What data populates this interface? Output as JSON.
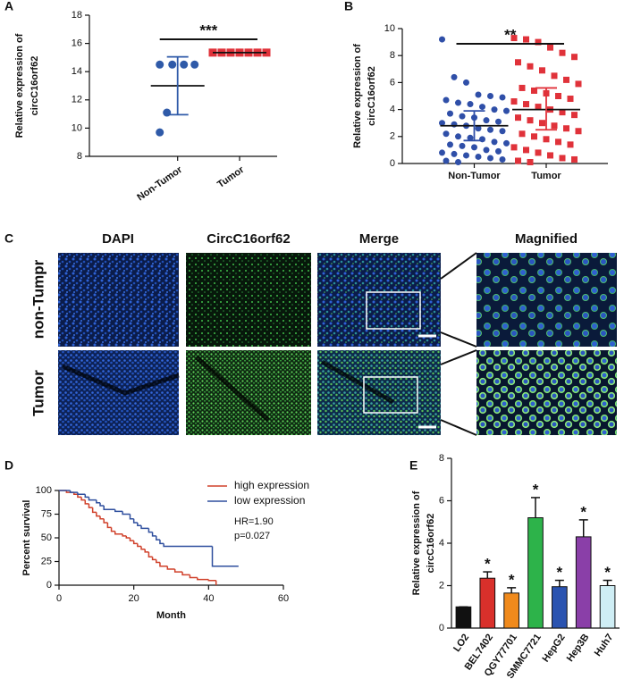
{
  "chart_data": [
    {
      "label": "A",
      "type": "dotplot",
      "ylabel": [
        "Relative expression of",
        "circC16orf62"
      ],
      "categories": [
        "Non-Tumor",
        "Tumor"
      ],
      "colors": [
        "#2f5aa8",
        "#e0323a"
      ],
      "markers": [
        "circle",
        "square"
      ],
      "values": [
        [
          14.5,
          14.5,
          14.5,
          14.5,
          11.1,
          9.7
        ],
        [
          15.35,
          15.35,
          15.35,
          15.35,
          15.35,
          15.35,
          15.35
        ]
      ],
      "means": [
        13.0,
        15.35
      ],
      "error_bars": [
        [
          10.95,
          15.05
        ],
        null
      ],
      "significance": "***",
      "ylim": [
        8,
        18
      ],
      "yticks": [
        8,
        10,
        12,
        14,
        16,
        18
      ]
    },
    {
      "label": "B",
      "type": "dotplot",
      "ylabel": [
        "Relative expression of",
        "circC16orf62"
      ],
      "categories": [
        "Non-Tumor",
        "Tumor"
      ],
      "colors": [
        "#2f4fa8",
        "#e0323a"
      ],
      "markers": [
        "circle",
        "square"
      ],
      "values": [
        [
          9.2,
          6.4,
          6.0,
          5.1,
          5.0,
          4.9,
          4.7,
          4.5,
          4.4,
          4.2,
          4.0,
          3.9,
          3.7,
          3.5,
          3.4,
          3.2,
          3.1,
          3.0,
          2.9,
          2.8,
          2.6,
          2.5,
          2.4,
          2.2,
          2.0,
          1.9,
          1.8,
          1.6,
          1.5,
          1.4,
          1.3,
          1.2,
          1.0,
          0.9,
          0.8,
          0.7,
          0.6,
          0.5,
          0.4,
          0.3,
          0.2,
          0.1
        ],
        [
          9.3,
          9.2,
          9.0,
          8.6,
          8.2,
          7.9,
          7.5,
          7.2,
          6.9,
          6.5,
          6.2,
          5.9,
          5.6,
          5.4,
          5.2,
          5.0,
          4.8,
          4.6,
          4.4,
          4.2,
          4.0,
          3.8,
          3.6,
          3.4,
          3.2,
          3.0,
          2.8,
          2.6,
          2.4,
          2.2,
          2.0,
          1.8,
          1.6,
          1.4,
          1.2,
          1.0,
          0.8,
          0.6,
          0.4,
          0.3,
          0.2,
          0.1
        ]
      ],
      "means": [
        2.8,
        4.0
      ],
      "error_bars": [
        [
          1.7,
          3.9
        ],
        [
          2.5,
          5.6
        ]
      ],
      "significance": "**",
      "ylim": [
        0,
        10
      ],
      "yticks": [
        0,
        2,
        4,
        6,
        8,
        10
      ]
    },
    {
      "label": "D",
      "type": "survival",
      "xlabel": "Month",
      "ylabel": "Percent survival",
      "xlim": [
        0,
        60
      ],
      "xticks": [
        0,
        20,
        40,
        60
      ],
      "ylim": [
        0,
        100
      ],
      "yticks": [
        0,
        25,
        50,
        75,
        100
      ],
      "legend": "upper right",
      "annotations": [
        "HR=1.90",
        "p=0.027"
      ],
      "series": [
        {
          "name": "high expression",
          "color": "#d0402a",
          "x": [
            0,
            2,
            4,
            5,
            6,
            7,
            8,
            9,
            10,
            11,
            12,
            13,
            14,
            15,
            17,
            18,
            19,
            20,
            21,
            22,
            23,
            24,
            25,
            26,
            27,
            29,
            31,
            33,
            35,
            37,
            40,
            42
          ],
          "values": [
            100,
            98,
            96,
            93,
            90,
            86,
            82,
            77,
            73,
            70,
            66,
            61,
            57,
            54,
            52,
            50,
            47,
            44,
            41,
            38,
            35,
            30,
            27,
            24,
            20,
            17,
            14,
            11,
            8,
            6,
            5,
            0
          ]
        },
        {
          "name": "low expression",
          "color": "#2f4f9e",
          "x": [
            0,
            3,
            5,
            7,
            8,
            10,
            11,
            12,
            15,
            17,
            19,
            20,
            21,
            22,
            24,
            25,
            26,
            27,
            28,
            41,
            48
          ],
          "values": [
            100,
            98,
            96,
            93,
            90,
            87,
            84,
            80,
            78,
            75,
            70,
            66,
            63,
            60,
            56,
            52,
            48,
            44,
            41,
            20,
            20
          ]
        }
      ]
    },
    {
      "label": "E",
      "type": "bar",
      "ylabel": [
        "Relative expression of",
        "circC16orf62"
      ],
      "categories": [
        "LO2",
        "BEL7402",
        "QGY77701",
        "SMMC7721",
        "HepG2",
        "Hep3B",
        "Huh7"
      ],
      "values": [
        1.0,
        2.35,
        1.65,
        5.2,
        1.95,
        4.3,
        2.0
      ],
      "errors": [
        0,
        0.3,
        0.25,
        0.95,
        0.3,
        0.8,
        0.25
      ],
      "colors": [
        "#111111",
        "#d9302b",
        "#f08a1c",
        "#2db34a",
        "#2a53b0",
        "#8a3fa8",
        "#cfeef5"
      ],
      "significance": [
        null,
        "*",
        "*",
        "*",
        "*",
        "*",
        "*"
      ],
      "ylim": [
        0,
        8
      ],
      "yticks": [
        0,
        2,
        4,
        6,
        8
      ]
    }
  ],
  "micrograph": {
    "label": "C",
    "columns": [
      "DAPI",
      "CircC16orf62",
      "Merge",
      "Magnified"
    ],
    "rows": [
      "non-Tumpr",
      "Tumor"
    ]
  }
}
